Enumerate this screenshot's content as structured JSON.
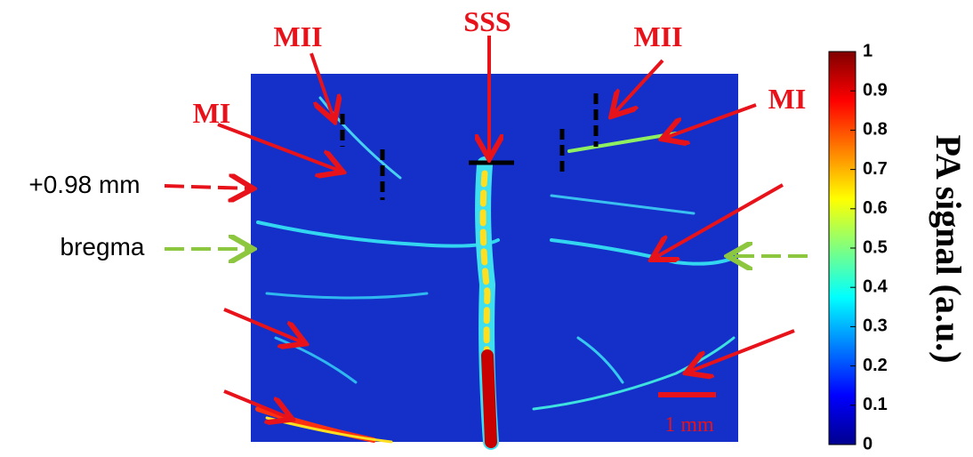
{
  "annotations": [
    "MII",
    "SSS",
    "MII",
    "MI",
    "MI",
    "+0.98 mm",
    "bregma",
    "1 mm"
  ],
  "colorbar": {
    "label": "PA signal (a.u.)",
    "lim": [
      0,
      1
    ],
    "ticks": [
      0,
      0.1,
      0.2,
      0.3,
      0.4,
      0.5,
      0.6,
      0.7,
      0.8,
      0.9,
      1
    ]
  }
}
